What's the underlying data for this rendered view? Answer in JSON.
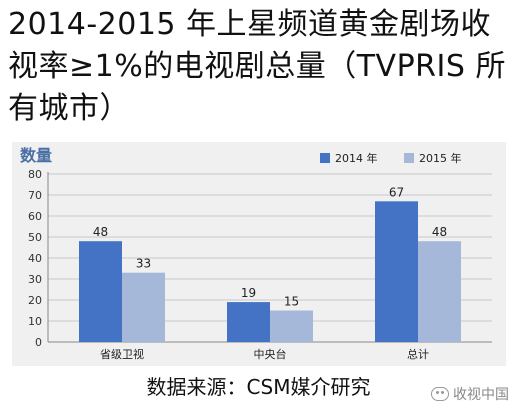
{
  "title": "2014-2015 年上星频道黄金剧场收视率≥1%的电视剧总量（TVPRIS 所有城市）",
  "source": "数据来源：CSM媒介研究",
  "watermark": "收视中国",
  "chart_data": {
    "type": "bar",
    "ylabel": "数量",
    "categories": [
      "省级卫视",
      "中央台",
      "总计"
    ],
    "series": [
      {
        "name": "2014 年",
        "values": [
          48,
          19,
          67
        ],
        "color": "#4472c4"
      },
      {
        "name": "2015 年",
        "values": [
          33,
          15,
          48
        ],
        "color": "#a5b8d9"
      }
    ],
    "ylim": [
      0,
      80
    ],
    "yticks": [
      0,
      10,
      20,
      30,
      40,
      50,
      60,
      70,
      80
    ],
    "grid": true,
    "legend": "top-right",
    "data_labels": true
  }
}
